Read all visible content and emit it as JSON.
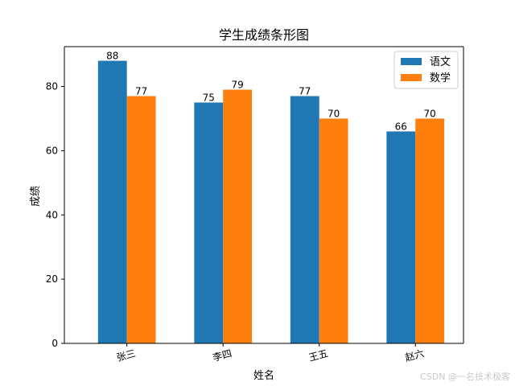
{
  "chart_data": {
    "type": "bar",
    "title": "学生成绩条形图",
    "xlabel": "姓名",
    "ylabel": "成绩",
    "categories": [
      "张三",
      "李四",
      "王五",
      "赵六"
    ],
    "series": [
      {
        "name": "语文",
        "color": "#1f77b4",
        "values": [
          88,
          75,
          77,
          66
        ]
      },
      {
        "name": "数学",
        "color": "#ff7f0e",
        "values": [
          77,
          79,
          70,
          70
        ]
      }
    ],
    "ylim": [
      0,
      92.4
    ],
    "yticks": [
      0,
      20,
      40,
      60,
      80
    ],
    "grid": false,
    "legend_position": "top-right",
    "data_labels": true,
    "xtick_rotation": "slight"
  },
  "watermark": "CSDN @一名技术极客"
}
